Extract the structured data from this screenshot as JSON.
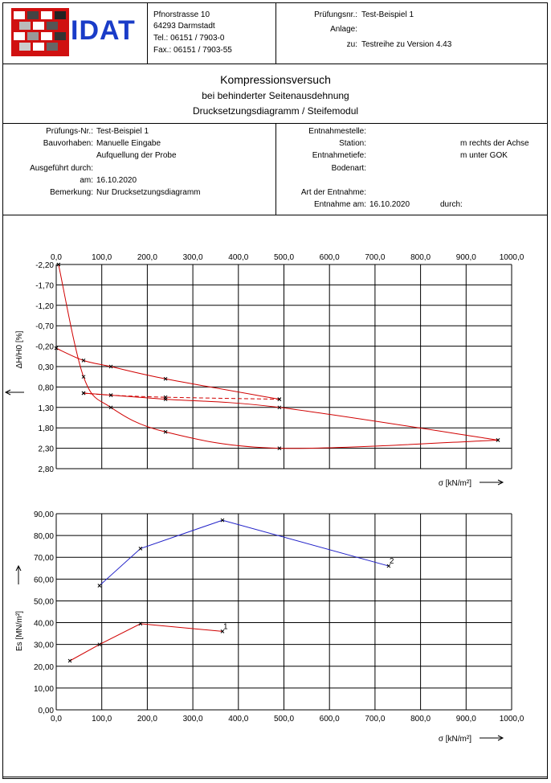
{
  "header": {
    "brand": "IDAT",
    "address": [
      "Pfnorstrasse 10",
      "64293 Darmstadt",
      "Tel.:  06151 / 7903-0",
      "Fax.: 06151 / 7903-55"
    ],
    "pruefnr_label": "Prüfungsnr.:",
    "pruefnr_value": "Test-Beispiel 1",
    "anlage_label": "Anlage:",
    "zu_label": "zu:",
    "zu_value": "Testreihe zu Version 4.43"
  },
  "title": {
    "main": "Kompressionsversuch",
    "sub1": "bei behinderter Seitenausdehnung",
    "sub2": "Drucksetzungsdiagramm / Steifemodul"
  },
  "info": {
    "left_labels": [
      "Prüfungs-Nr.:",
      "Bauvorhaben:",
      "",
      "Ausgeführt durch:",
      "am:",
      "Bemerkung:"
    ],
    "left_values": [
      "Test-Beispiel 1",
      "Manuelle Eingabe",
      "Aufquellung der Probe",
      "",
      "16.10.2020",
      "Nur Drucksetzungsdiagramm"
    ],
    "right_labels": [
      "Entnahmestelle:",
      "Station:",
      "Entnahmetiefe:",
      "Bodenart:",
      "",
      "Art der Entnahme:",
      "Entnahme am:"
    ],
    "station_unit": "m rechts der Achse",
    "tiefe_unit": "m unter GOK",
    "entnahme_am": "16.10.2020",
    "durch_label": "durch:"
  },
  "chart_data": [
    {
      "type": "line",
      "xlabel": "σ [kN/m²]",
      "ylabel": "ΔH/H0 [%]",
      "x_ticks": [
        "0,0",
        "100,0",
        "200,0",
        "300,0",
        "400,0",
        "500,0",
        "600,0",
        "700,0",
        "800,0",
        "900,0",
        "1000,0"
      ],
      "y_ticks": [
        "-2,20",
        "-1,70",
        "-1,20",
        "-0,70",
        "-0,20",
        "0,30",
        "0,80",
        "1,30",
        "1,80",
        "2,30",
        "2,80"
      ],
      "xlim": [
        0,
        1000
      ],
      "ylim": [
        -2.2,
        2.8
      ],
      "series": [
        {
          "color": "#d00000",
          "dashed": false,
          "points": [
            [
              5,
              -2.2
            ],
            [
              60,
              0.55
            ],
            [
              120,
              1.3
            ],
            [
              240,
              1.9
            ],
            [
              490,
              2.3
            ],
            [
              970,
              2.1
            ]
          ]
        },
        {
          "color": "#d00000",
          "dashed": false,
          "points": [
            [
              0,
              -0.15
            ],
            [
              60,
              0.15
            ],
            [
              120,
              0.3
            ],
            [
              240,
              0.6
            ],
            [
              490,
              1.1
            ]
          ]
        },
        {
          "color": "#d00000",
          "dashed": false,
          "points": [
            [
              60,
              0.95
            ],
            [
              120,
              1.0
            ],
            [
              240,
              1.1
            ],
            [
              490,
              1.3
            ],
            [
              970,
              2.1
            ]
          ]
        },
        {
          "color": "#d00000",
          "dashed": true,
          "points": [
            [
              60,
              0.95
            ],
            [
              120,
              1.0
            ],
            [
              240,
              1.05
            ],
            [
              490,
              1.1
            ]
          ]
        }
      ]
    },
    {
      "type": "line",
      "xlabel": "σ [kN/m²]",
      "ylabel": "Es [MN/m²]",
      "x_ticks": [
        "0,0",
        "100,0",
        "200,0",
        "300,0",
        "400,0",
        "500,0",
        "600,0",
        "700,0",
        "800,0",
        "900,0",
        "1000,0"
      ],
      "y_ticks": [
        "90,00",
        "80,00",
        "70,00",
        "60,00",
        "50,00",
        "40,00",
        "30,00",
        "20,00",
        "10,00",
        "0,00"
      ],
      "xlim": [
        0,
        1000
      ],
      "ylim": [
        0,
        90
      ],
      "series": [
        {
          "name": "1",
          "color": "#d00000",
          "points": [
            [
              30,
              22.5
            ],
            [
              95,
              30.0
            ],
            [
              185,
              39.5
            ],
            [
              365,
              36.0
            ]
          ]
        },
        {
          "name": "2",
          "color": "#2020c8",
          "points": [
            [
              95,
              57.0
            ],
            [
              185,
              74.0
            ],
            [
              365,
              87.0
            ],
            [
              730,
              66.0
            ]
          ]
        }
      ]
    }
  ]
}
